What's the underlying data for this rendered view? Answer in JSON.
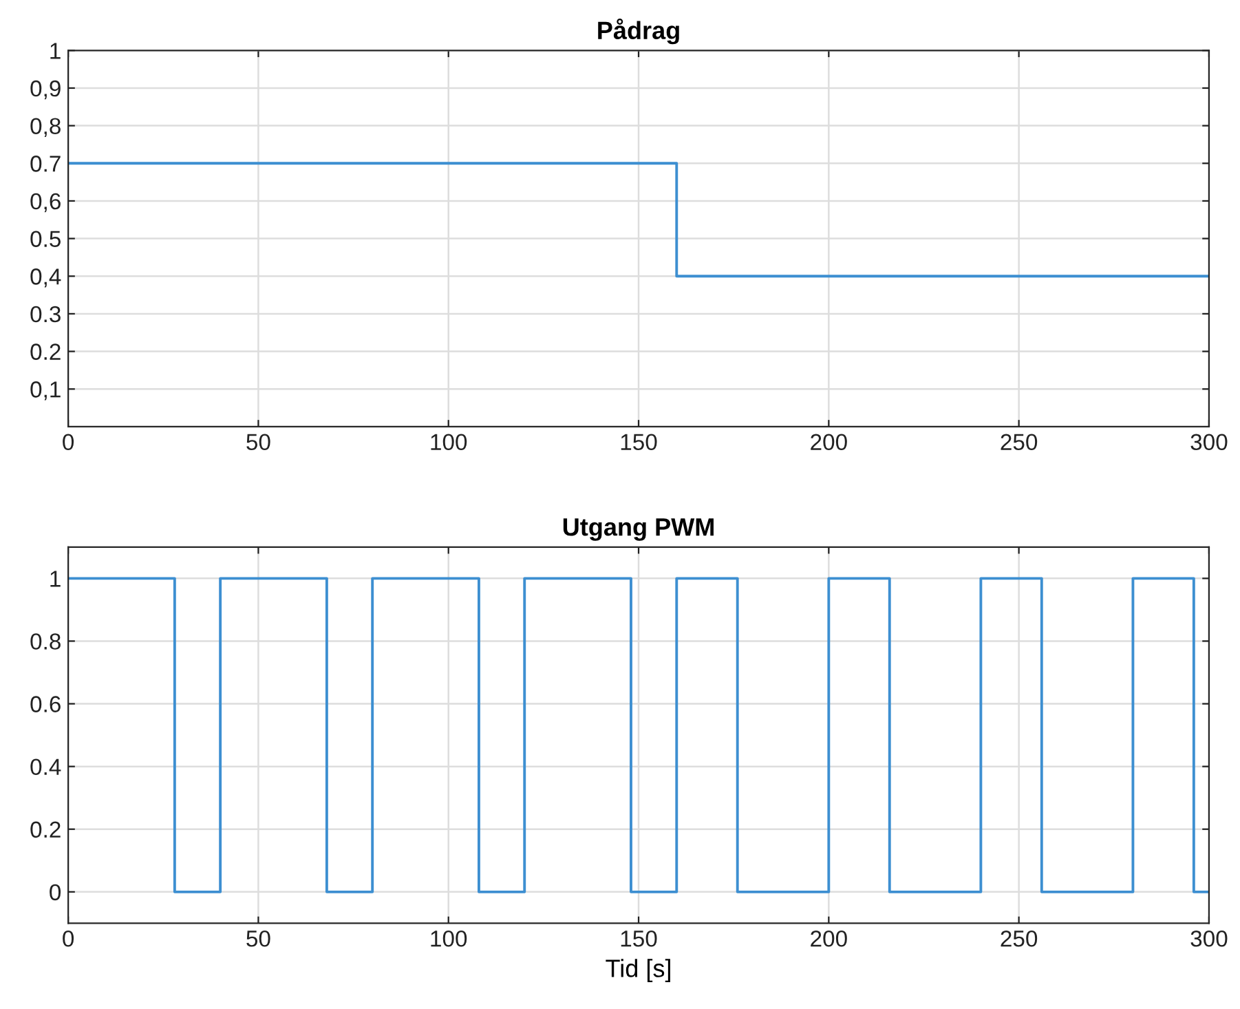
{
  "chart_data": [
    {
      "type": "step",
      "title": "Pådrag",
      "x": [
        0,
        160,
        300
      ],
      "series": [
        {
          "color": "#3d8fd1",
          "values": [
            0.7,
            0.4,
            0.4
          ]
        }
      ],
      "xlim": [
        0,
        300
      ],
      "xticks": [
        0,
        50,
        100,
        150,
        200,
        250,
        300
      ],
      "ylim": [
        0,
        1
      ],
      "yticks": [
        {
          "value": 0.1,
          "label": "0,1"
        },
        {
          "value": 0.2,
          "label": "0.2"
        },
        {
          "value": 0.3,
          "label": "0.3"
        },
        {
          "value": 0.4,
          "label": "0,4"
        },
        {
          "value": 0.5,
          "label": "0.5"
        },
        {
          "value": 0.6,
          "label": "0,6"
        },
        {
          "value": 0.7,
          "label": "0.7"
        },
        {
          "value": 0.8,
          "label": "0,8"
        },
        {
          "value": 0.9,
          "label": "0,9"
        },
        1
      ],
      "grid": true,
      "line_style": "solid"
    },
    {
      "type": "step",
      "title": "Utgang PWM",
      "xlabel": "Tid [s]",
      "x": [
        0,
        28,
        40,
        68,
        80,
        108,
        120,
        148,
        160,
        176,
        200,
        216,
        240,
        256,
        280,
        296,
        300
      ],
      "series": [
        {
          "color": "#3d8fd1",
          "values": [
            1,
            0,
            1,
            0,
            1,
            0,
            1,
            0,
            1,
            0,
            1,
            0,
            1,
            0,
            1,
            0,
            0
          ]
        }
      ],
      "xlim": [
        0,
        300
      ],
      "xticks": [
        0,
        50,
        100,
        150,
        200,
        250,
        300
      ],
      "ylim": [
        -0.1,
        1.1
      ],
      "yticks": [
        0,
        {
          "value": 0.2,
          "label": "0.2"
        },
        {
          "value": 0.4,
          "label": "0.4"
        },
        {
          "value": 0.6,
          "label": "0.6"
        },
        {
          "value": 0.8,
          "label": "0.8"
        },
        1
      ],
      "grid": true,
      "line_style": "solid"
    }
  ]
}
